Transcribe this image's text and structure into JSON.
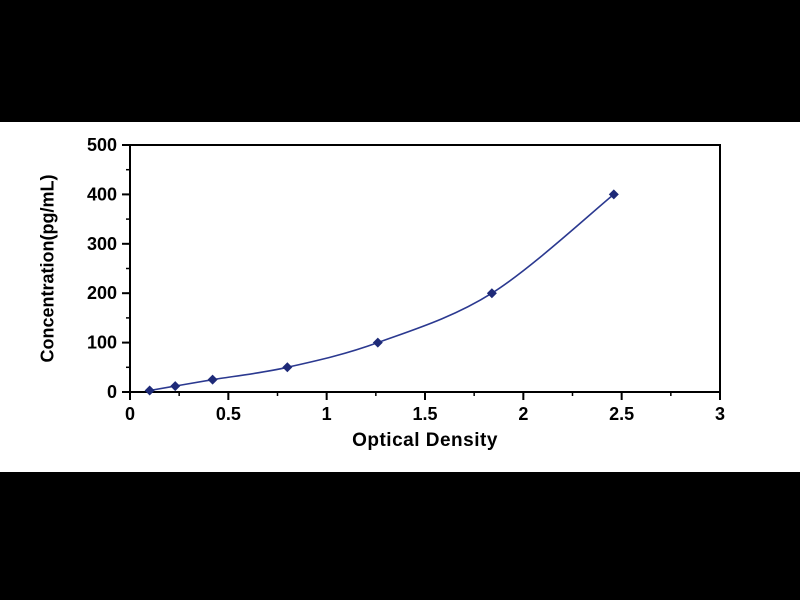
{
  "page": {
    "background_color": "#000000",
    "panel_color": "#ffffff"
  },
  "chart_data": {
    "type": "line",
    "title": "",
    "xlabel": "Optical Density",
    "ylabel": "Concentration(pg/mL)",
    "x": [
      0.1,
      0.23,
      0.42,
      0.8,
      1.26,
      1.84,
      2.46
    ],
    "y": [
      3,
      12,
      25,
      50,
      100,
      200,
      400
    ],
    "xlim": [
      0,
      3
    ],
    "ylim": [
      0,
      500
    ],
    "x_ticks": [
      0,
      0.5,
      1,
      1.5,
      2,
      2.5,
      3
    ],
    "x_tick_labels": [
      "0",
      "0.5",
      "1",
      "1.5",
      "2",
      "2.5",
      "3"
    ],
    "y_ticks": [
      0,
      100,
      200,
      300,
      400,
      500
    ],
    "y_tick_labels": [
      "0",
      "100",
      "200",
      "300",
      "400",
      "500"
    ],
    "x_minor_step": 0.25,
    "y_minor_step": 50,
    "grid": "off",
    "legend": "none",
    "marker": "diamond",
    "line_color": "#2b3990",
    "marker_color": "#1e2a78",
    "axis_color": "#000000"
  }
}
